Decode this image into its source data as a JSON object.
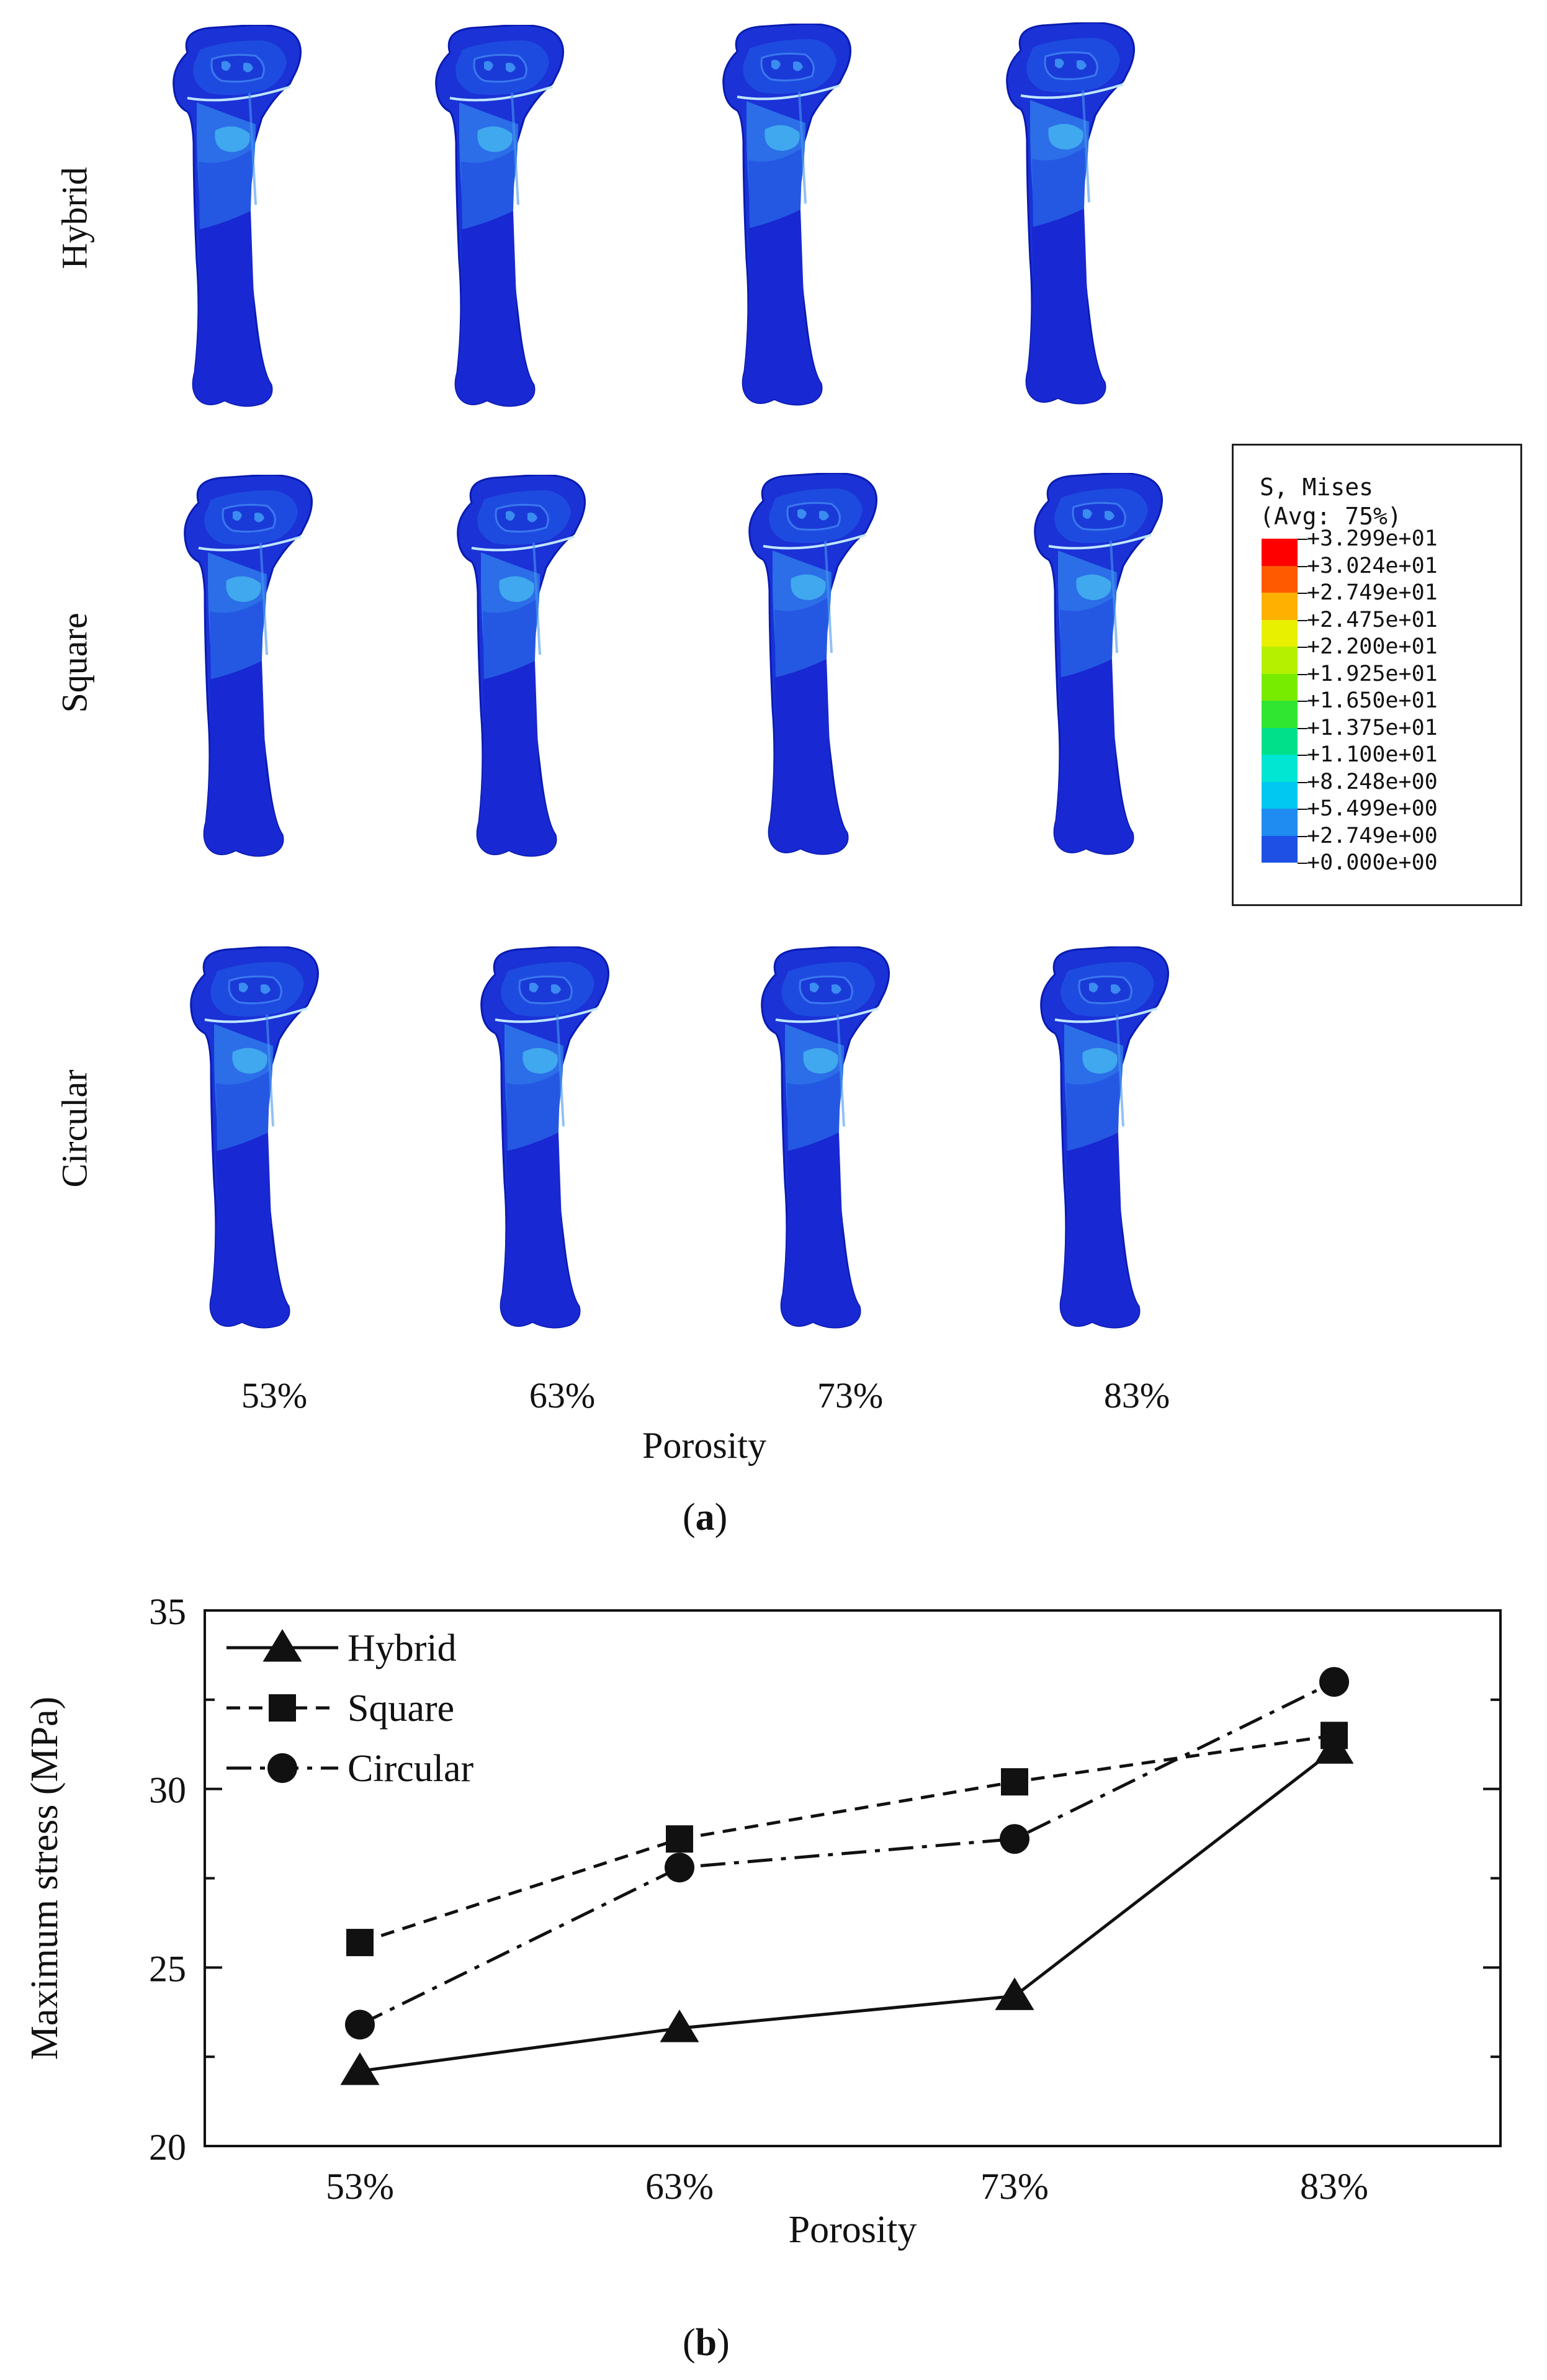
{
  "panel_a": {
    "row_labels": [
      "Hybrid",
      "Square",
      "Circular"
    ],
    "col_labels": [
      "53%",
      "63%",
      "73%",
      "83%"
    ],
    "xlabel": "Porosity",
    "panel_label": "a",
    "legend": {
      "title_line1": "S, Mises",
      "title_line2": "(Avg: 75%)",
      "values": [
        "+3.299e+01",
        "+3.024e+01",
        "+2.749e+01",
        "+2.475e+01",
        "+2.200e+01",
        "+1.925e+01",
        "+1.650e+01",
        "+1.375e+01",
        "+1.100e+01",
        "+8.248e+00",
        "+5.499e+00",
        "+2.749e+00",
        "+0.000e+00"
      ],
      "colors": [
        "#ff0000",
        "#ff5a00",
        "#ffb000",
        "#e8f000",
        "#b4f000",
        "#78ec00",
        "#30e630",
        "#00e08a",
        "#00e6d2",
        "#00c8f0",
        "#1e8cf0",
        "#1e50e6",
        "#0f1ed2"
      ]
    }
  },
  "panel_b": {
    "panel_label": "b"
  },
  "chart_data": {
    "type": "line",
    "title": "",
    "xlabel": "Porosity",
    "ylabel": "Maximum stress (MPa)",
    "categories": [
      "53%",
      "63%",
      "73%",
      "83%"
    ],
    "ylim": [
      20,
      35
    ],
    "yticks": [
      20,
      25,
      30,
      35
    ],
    "legend_position": "top-left",
    "series": [
      {
        "name": "Hybrid",
        "marker": "triangle",
        "dash": "solid",
        "values": [
          22.1,
          23.3,
          24.2,
          31.1
        ]
      },
      {
        "name": "Square",
        "marker": "square",
        "dash": "dashed",
        "values": [
          25.7,
          28.6,
          30.2,
          31.5
        ]
      },
      {
        "name": "Circular",
        "marker": "circle",
        "dash": "dashdot",
        "values": [
          23.4,
          27.8,
          28.6,
          33.0
        ]
      }
    ]
  }
}
